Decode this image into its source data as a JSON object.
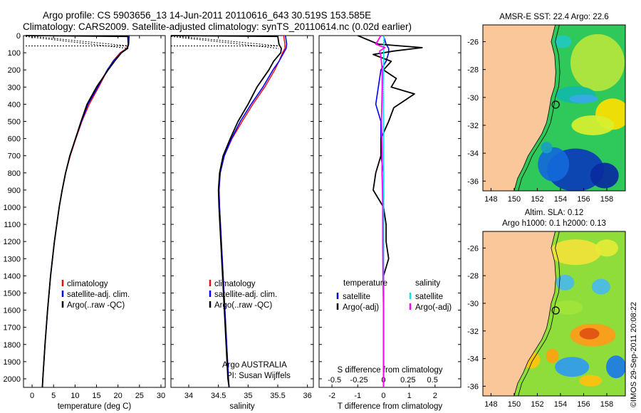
{
  "title_line1": "Argo profile: CS 5903656_13 14-Jun-2011 20110616_643 30.519S 153.585E",
  "title_line2": "Climatology: CARS2009. Satellite-adjusted climatology: synTS_20110614.nc (0.02d earlier)",
  "colors": {
    "climatology": "#ff0000",
    "satellite": "#0000ff",
    "argo": "#000000",
    "sal_satellite": "#00e5e5",
    "sal_argo": "#ff00ff",
    "land": "#f9c79a"
  },
  "chart_data": [
    {
      "type": "line",
      "name": "temperature-panel",
      "xlabel": "temperature (deg C)",
      "ylabel": "",
      "xlim": [
        -2,
        31
      ],
      "ylim": [
        0,
        2050
      ],
      "xticks": [
        0,
        5,
        10,
        15,
        20,
        25,
        30
      ],
      "yticks": [
        0,
        100,
        200,
        300,
        400,
        500,
        600,
        700,
        800,
        900,
        1000,
        1100,
        1200,
        1300,
        1400,
        1500,
        1600,
        1700,
        1800,
        1900,
        2000
      ],
      "legend": [
        "climatology",
        "satellite-adj. clim.",
        "Argo(..raw -QC)"
      ],
      "series": [
        {
          "key": "climatology",
          "depth": [
            0,
            50,
            75,
            100,
            150,
            200,
            300,
            400,
            500,
            600,
            700,
            800,
            900,
            1000,
            1200,
            1400,
            1600,
            1800,
            2000,
            2050
          ],
          "values": [
            22.6,
            22.4,
            22.0,
            20.5,
            18.8,
            17.6,
            15.5,
            13.3,
            11.6,
            10.2,
            8.9,
            7.8,
            7.0,
            6.3,
            5.2,
            4.3,
            3.6,
            3.0,
            2.5,
            2.4
          ]
        },
        {
          "key": "satellite",
          "depth": [
            0,
            50,
            75,
            100,
            150,
            200,
            300,
            400,
            500,
            600,
            700,
            800,
            900,
            1000,
            1200,
            1400,
            1600,
            1800,
            2000,
            2050
          ],
          "values": [
            22.6,
            22.5,
            22.2,
            20.7,
            18.9,
            17.5,
            15.3,
            13.0,
            11.5,
            10.1,
            8.8,
            7.8,
            7.0,
            6.3,
            5.2,
            4.3,
            3.6,
            3.0,
            2.5,
            2.4
          ]
        },
        {
          "key": "argo",
          "depth": [
            0,
            5,
            50,
            75,
            100,
            150,
            200,
            300,
            400,
            500,
            600,
            700,
            800,
            900,
            1000,
            1200,
            1400,
            1600,
            1800,
            2000,
            2050
          ],
          "values": [
            -1.5,
            22.3,
            22.4,
            22.2,
            20.8,
            19.2,
            17.7,
            15.0,
            12.8,
            11.4,
            10.1,
            8.8,
            7.8,
            7.0,
            6.3,
            5.2,
            4.3,
            3.6,
            3.0,
            2.5,
            2.4
          ]
        }
      ]
    },
    {
      "type": "line",
      "name": "salinity-panel",
      "xlabel": "salinity",
      "xlim": [
        33.7,
        36.1
      ],
      "ylim": [
        0,
        2050
      ],
      "xticks": [
        34,
        34.5,
        35,
        35.5,
        36
      ],
      "legend": [
        "climatology",
        "satellite-adj. clim.",
        "Argo(..raw -QC)"
      ],
      "annotation": [
        "Argo AUSTRALIA",
        "PI: Susan Wijffels"
      ],
      "series": [
        {
          "key": "climatology",
          "depth": [
            0,
            50,
            75,
            100,
            150,
            200,
            300,
            400,
            500,
            600,
            700,
            800,
            900,
            1000,
            1200,
            1400,
            1600,
            1800,
            2000,
            2050
          ],
          "values": [
            35.6,
            35.62,
            35.62,
            35.58,
            35.52,
            35.45,
            35.28,
            35.08,
            34.9,
            34.73,
            34.6,
            34.53,
            34.51,
            34.52,
            34.55,
            34.58,
            34.61,
            34.64,
            34.67,
            34.68
          ]
        },
        {
          "key": "satellite",
          "depth": [
            0,
            50,
            75,
            100,
            150,
            200,
            300,
            400,
            500,
            600,
            700,
            800,
            900,
            1000,
            1200,
            1400,
            1600,
            1800,
            2000,
            2050
          ],
          "values": [
            35.63,
            35.65,
            35.64,
            35.6,
            35.52,
            35.42,
            35.25,
            35.05,
            34.87,
            34.72,
            34.6,
            34.53,
            34.51,
            34.52,
            34.55,
            34.58,
            34.61,
            34.64,
            34.67,
            34.68
          ]
        },
        {
          "key": "argo",
          "depth": [
            0,
            5,
            50,
            75,
            100,
            150,
            200,
            300,
            400,
            500,
            600,
            700,
            800,
            900,
            1000,
            1200,
            1400,
            1600,
            1800,
            2000,
            2050
          ],
          "values": [
            33.7,
            35.5,
            35.52,
            35.56,
            35.55,
            35.43,
            35.35,
            35.15,
            35.0,
            34.83,
            34.7,
            34.58,
            34.52,
            34.5,
            34.51,
            34.54,
            34.57,
            34.6,
            34.63,
            34.66,
            34.68
          ]
        }
      ]
    },
    {
      "type": "line",
      "name": "difference-panel",
      "xlabel": "T difference from climatology",
      "xlabel2": "S difference from climatology",
      "xlim": [
        -2.5,
        3.0
      ],
      "ylim": [
        0,
        2050
      ],
      "xticks": [
        "-2",
        "-1",
        "0",
        "1",
        "2"
      ],
      "xticks2": [
        "-0.5",
        "-0.25",
        "0",
        "0.25",
        "0.5"
      ],
      "legend_temp_title": "temperature",
      "legend_sal_title": "salinity",
      "legend_temp": [
        "satellite",
        "Argo(-adj)"
      ],
      "legend_sal": [
        "satellite",
        "Argo(-adj)"
      ],
      "series": [
        {
          "key": "t_sat",
          "depth": [
            0,
            50,
            75,
            100,
            150,
            200,
            300,
            400,
            500,
            600,
            700,
            800,
            900,
            1000,
            1200,
            1400,
            1600,
            1800,
            2000,
            2050
          ],
          "values": [
            0.0,
            0.1,
            0.2,
            0.2,
            0.1,
            -0.1,
            -0.2,
            -0.3,
            -0.1,
            -0.1,
            -0.1,
            0.0,
            0.0,
            0.0,
            0.0,
            0.0,
            0.0,
            0.0,
            0.0,
            0.0
          ]
        },
        {
          "key": "t_argo",
          "depth": [
            0,
            50,
            70,
            90,
            110,
            150,
            200,
            250,
            300,
            340,
            380,
            420,
            500,
            600,
            700,
            800,
            900,
            1000,
            1100,
            1200,
            1300,
            1400,
            1600,
            2000,
            2050
          ],
          "values": [
            -1.0,
            -0.2,
            1.5,
            0.4,
            -0.4,
            0.3,
            0.0,
            0.5,
            0.3,
            1.2,
            0.8,
            0.4,
            0.2,
            -0.1,
            -0.1,
            -0.3,
            -0.4,
            0.0,
            0.1,
            0.1,
            0.2,
            0.0,
            0.0,
            0.0,
            0.0
          ]
        },
        {
          "key": "s_sat",
          "depth": [
            0,
            50,
            75,
            100,
            200,
            300,
            400,
            500,
            700,
            1000,
            1500,
            2000,
            2050
          ],
          "values": [
            0.02,
            0.02,
            0.01,
            0.01,
            0.0,
            -0.02,
            -0.01,
            0.0,
            0.0,
            0.0,
            0.0,
            0.0,
            0.0
          ]
        },
        {
          "key": "s_argo",
          "depth": [
            0,
            50,
            70,
            90,
            120,
            200,
            300,
            500,
            700,
            800,
            900,
            1000,
            1200,
            1400,
            1600,
            2000,
            2050
          ],
          "values": [
            -0.1,
            -0.3,
            0.05,
            -0.15,
            -0.1,
            -0.05,
            -0.05,
            -0.08,
            -0.05,
            -0.06,
            -0.04,
            -0.03,
            -0.03,
            -0.02,
            0.0,
            0.0,
            0.0
          ]
        }
      ]
    }
  ],
  "maps": [
    {
      "name": "sst-map",
      "title": "AMSR-E SST: 22.4 Argo: 22.6",
      "title2": "",
      "xticks": [
        "148",
        "150",
        "152",
        "154",
        "156",
        "158"
      ],
      "yticks": [
        "-26",
        "-28",
        "-30",
        "-32",
        "-34",
        "-36"
      ]
    },
    {
      "name": "sla-map",
      "title": "Altim. SLA: 0.12",
      "title2": "Argo h1000: 0.1 h2000: 0.13",
      "xticks": [
        "148",
        "150",
        "152",
        "154",
        "156",
        "158"
      ],
      "yticks": [
        "-26",
        "-28",
        "-30",
        "-32",
        "-34",
        "-36"
      ]
    }
  ],
  "stamp": "©IMOS 29-Sep-2011 20:08:22"
}
